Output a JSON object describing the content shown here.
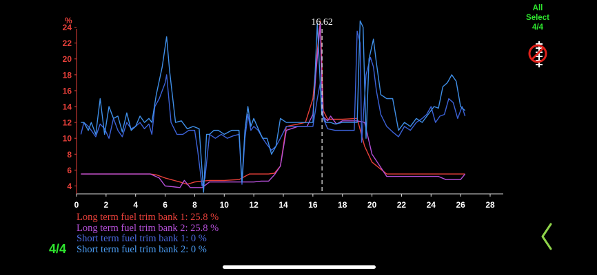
{
  "chart_data": {
    "type": "line",
    "xlim": [
      0,
      28
    ],
    "ylim": [
      3,
      25
    ],
    "x_ticks": [
      0,
      2,
      4,
      6,
      8,
      10,
      12,
      14,
      16,
      18,
      20,
      22,
      24,
      26,
      28
    ],
    "y_ticks": [
      4,
      6,
      8,
      10,
      12,
      14,
      16,
      18,
      20,
      22,
      24
    ],
    "ylabel": "%",
    "cursor": {
      "x": 16.62,
      "label": "16.62"
    },
    "series": [
      {
        "name": "Long term fuel trim bank 1",
        "color": "#e8403a",
        "x": [
          0.3,
          1,
          2,
          3,
          4,
          5,
          5.4,
          6,
          7,
          7.5,
          8,
          8.5,
          9,
          10,
          11,
          11.7,
          12.5,
          13,
          13.4,
          13.8,
          14.2,
          15,
          15.5,
          16,
          16.3,
          16.5,
          16.6,
          16.7,
          17,
          18,
          19,
          19.5,
          20,
          21,
          22,
          23,
          24,
          25,
          26.3
        ],
        "y": [
          5.5,
          5.5,
          5.5,
          5.5,
          5.5,
          5.5,
          5.4,
          5,
          4.5,
          4.2,
          4.5,
          4.6,
          4.7,
          4.7,
          4.8,
          5.5,
          5.5,
          5.5,
          5.6,
          6.5,
          11.5,
          11.8,
          12,
          15,
          21,
          24.8,
          20,
          13.5,
          12.4,
          12.4,
          12.5,
          9,
          7,
          5.5,
          5.5,
          5.5,
          5.5,
          5.5,
          5.5
        ]
      },
      {
        "name": "Long term fuel trim bank 2",
        "color": "#b44fd8",
        "x": [
          0.3,
          1,
          2,
          3,
          4,
          5,
          5.6,
          6,
          6.5,
          7,
          7.3,
          7.7,
          8,
          8.5,
          9,
          10,
          11,
          11.5,
          12,
          12.5,
          13,
          13.4,
          13.8,
          14.2,
          15,
          15.6,
          16,
          16.2,
          16.5,
          16.6,
          16.7,
          17,
          17.2,
          17.6,
          18,
          19,
          19.5,
          20,
          21,
          22,
          23,
          24,
          24.5,
          25,
          26,
          26.3
        ],
        "y": [
          5.5,
          5.5,
          5.5,
          5.5,
          5.5,
          5.5,
          5,
          4,
          3.9,
          3.8,
          4.7,
          3.8,
          3.8,
          3.8,
          4.5,
          4.5,
          4.5,
          4.5,
          4.5,
          4.6,
          4.6,
          5.4,
          6.5,
          11,
          11.5,
          11.5,
          13,
          18,
          24.5,
          17,
          12.7,
          12.2,
          12.8,
          11.8,
          12.2,
          12.2,
          12,
          8,
          5.2,
          5.2,
          5.2,
          5.2,
          5.2,
          4.8,
          4.8,
          5.5
        ]
      },
      {
        "name": "Short term fuel trim bank 1",
        "color": "#3c62d8",
        "x": [
          0.3,
          0.5,
          0.8,
          1,
          1.3,
          1.6,
          1.9,
          2.2,
          2.5,
          2.8,
          3.1,
          3.4,
          3.7,
          4,
          4.3,
          4.6,
          4.9,
          5.1,
          5.3,
          5.6,
          6,
          6.1,
          6.4,
          6.8,
          7.2,
          7.6,
          8,
          8.2,
          8.5,
          8.7,
          9,
          9.4,
          9.8,
          10.2,
          10.6,
          11,
          11.2,
          11.4,
          11.6,
          11.8,
          12,
          12.3,
          12.6,
          12.9,
          13.2,
          13.5,
          13.8,
          14.2,
          15,
          16,
          16.3,
          16.5,
          16.7,
          17,
          17.5,
          18,
          18.5,
          18.8,
          19,
          19.2,
          19.3,
          19.6,
          19.9,
          20.1,
          20.3,
          20.6,
          21,
          21.4,
          21.8,
          22.2,
          22.6,
          23,
          23.4,
          23.7,
          24,
          24.3,
          24.6,
          24.9,
          25.2,
          25.5,
          25.8,
          26.1,
          26.3
        ],
        "y": [
          10.5,
          12,
          11.5,
          11,
          10.2,
          11.8,
          11.2,
          10,
          12.5,
          11,
          10.2,
          12,
          11.2,
          11.5,
          12,
          11.2,
          11.8,
          10.5,
          14,
          15,
          17,
          18,
          12,
          10.5,
          10.5,
          11,
          11,
          8.5,
          4,
          5,
          10.5,
          10,
          10.5,
          10,
          10.3,
          10.5,
          4.2,
          10,
          13,
          11,
          11.5,
          11,
          10,
          9.2,
          8.5,
          9,
          10,
          11.5,
          11.5,
          11.5,
          15,
          17,
          12.5,
          11.2,
          11,
          11,
          11,
          11,
          23.5,
          22,
          9.5,
          18,
          20.2,
          19,
          16,
          13,
          11.5,
          10.8,
          10.2,
          11.5,
          11,
          12,
          12.5,
          13,
          14,
          12,
          12.8,
          13,
          15,
          14.5,
          12.5,
          14,
          12.8
        ]
      },
      {
        "name": "Short term fuel trim bank 2",
        "color": "#3f8fe8",
        "x": [
          0.3,
          0.5,
          0.8,
          1,
          1.3,
          1.6,
          1.9,
          2.2,
          2.5,
          2.8,
          3.1,
          3.4,
          3.7,
          4,
          4.3,
          4.6,
          4.9,
          5.1,
          5.4,
          5.8,
          6.1,
          6.3,
          6.7,
          7.1,
          7.5,
          7.9,
          8.3,
          8.6,
          8.8,
          9,
          9.3,
          9.6,
          10,
          10.5,
          11,
          11.2,
          11.4,
          11.6,
          11.8,
          12,
          12.3,
          12.6,
          12.9,
          13.2,
          13.5,
          13.8,
          14.2,
          15,
          16,
          16.3,
          16.6,
          16.9,
          17.2,
          17.5,
          18,
          18.5,
          18.8,
          19,
          19.2,
          19.4,
          19.6,
          19.8,
          20.1,
          20.3,
          20.6,
          21,
          21.4,
          21.8,
          22.2,
          22.6,
          23,
          23.4,
          23.8,
          24.2,
          24.5,
          24.8,
          25.1,
          25.4,
          25.7,
          26,
          26.3
        ],
        "y": [
          12,
          12,
          11,
          12,
          10.5,
          15,
          10.5,
          14,
          12.5,
          12.8,
          10.8,
          13.2,
          11,
          11.5,
          12.8,
          12,
          12.5,
          12,
          15.5,
          19,
          22.8,
          18.5,
          12,
          12.2,
          11.2,
          11.5,
          11.2,
          3.2,
          10.5,
          10.5,
          11,
          11,
          10.5,
          11,
          11,
          4.5,
          11,
          14,
          11.5,
          12.5,
          11.2,
          10,
          10,
          8,
          9,
          12.5,
          12,
          12,
          12,
          24.5,
          13,
          12,
          12,
          11.8,
          12,
          12,
          12,
          12,
          24.8,
          24,
          10,
          20,
          22.5,
          19.5,
          15.5,
          15,
          15,
          11,
          12,
          11.5,
          12.5,
          12,
          13,
          14,
          13.8,
          16.5,
          17,
          18,
          17.2,
          14,
          13.5
        ]
      }
    ]
  },
  "legend": {
    "items": [
      {
        "text": "Long term fuel trim bank 1: 25.8 %",
        "color": "#e8403a"
      },
      {
        "text": "Long term fuel trim bank 2: 25.8 %",
        "color": "#b44fd8"
      },
      {
        "text": "Short term fuel trim bank 1: 0 %",
        "color": "#4a6ae0"
      },
      {
        "text": "Short term fuel trim bank 2: 0 %",
        "color": "#4a9af0"
      }
    ]
  },
  "controls": {
    "select_all_line1": "All",
    "select_all_line2": "Select",
    "select_all_line3": "4/4",
    "page_indicator": "4/4",
    "select_icon": "no-chart-cancel-icon",
    "back_icon": "chevron-left-icon"
  },
  "colors": {
    "background": "#000000",
    "axis_red": "#e8403a",
    "axis_gray": "#dddddd",
    "accent_green": "#2ee52e"
  }
}
